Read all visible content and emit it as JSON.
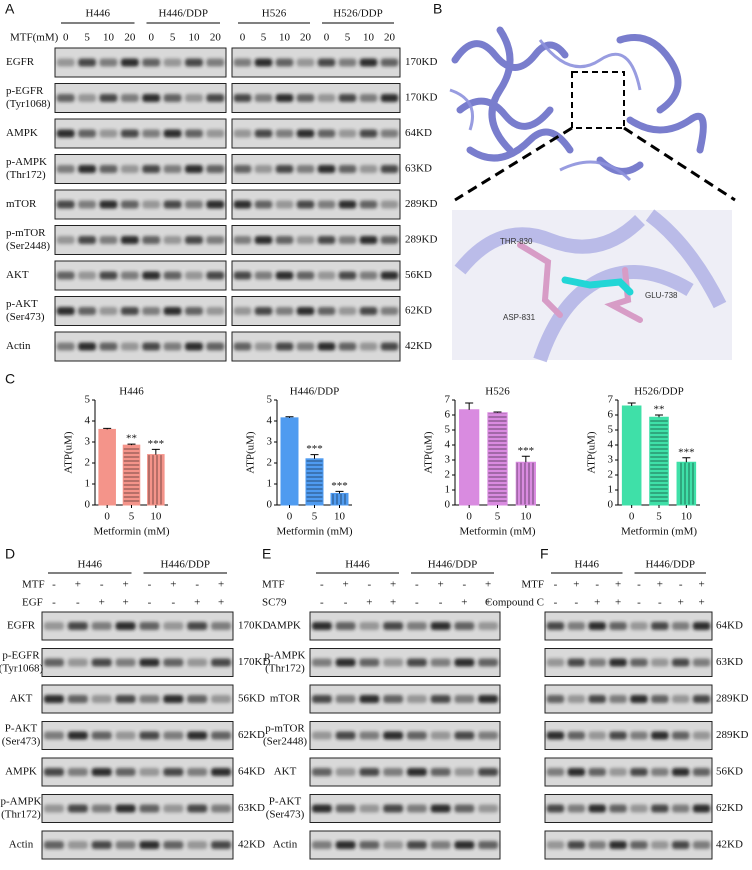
{
  "panel_a": {
    "label": "A",
    "dose_title": "MTF(mM)",
    "blots": [
      {
        "groups": [
          "H446",
          "H446/DDP"
        ],
        "doses": [
          "0",
          "5",
          "10",
          "20",
          "0",
          "5",
          "10",
          "20"
        ]
      },
      {
        "groups": [
          "H526",
          "H526/DDP"
        ],
        "doses": [
          "0",
          "5",
          "10",
          "20",
          "0",
          "5",
          "10",
          "20"
        ]
      }
    ],
    "rows": [
      {
        "label": [
          "EGFR"
        ],
        "size": "170KD"
      },
      {
        "label": [
          "p-EGFR",
          "(Tyr1068)"
        ],
        "size": "170KD"
      },
      {
        "label": [
          "AMPK"
        ],
        "size": "64KD"
      },
      {
        "label": [
          "p-AMPK",
          "(Thr172)"
        ],
        "size": "63KD"
      },
      {
        "label": [
          "mTOR"
        ],
        "size": "289KD"
      },
      {
        "label": [
          "p-mTOR",
          "(Ser2448)"
        ],
        "size": "289KD"
      },
      {
        "label": [
          "AKT"
        ],
        "size": "56KD"
      },
      {
        "label": [
          "p-AKT",
          "(Ser473)"
        ],
        "size": "62KD"
      },
      {
        "label": [
          "Actin"
        ],
        "size": "42KD"
      }
    ]
  },
  "panel_b": {
    "label": "B",
    "residues": [
      "THR-830",
      "ASP-831",
      "GLU-738"
    ]
  },
  "panel_c": {
    "label": "C"
  },
  "chart_data": [
    {
      "type": "bar",
      "title": "H446",
      "categories": [
        "0",
        "5",
        "10"
      ],
      "values": [
        3.6,
        2.85,
        2.4
      ],
      "errors": [
        0.05,
        0.05,
        0.25
      ],
      "significance": [
        null,
        "**",
        "***"
      ],
      "color": "#f4948a",
      "ylim": [
        0,
        5
      ],
      "yticks": [
        0,
        1,
        2,
        3,
        4,
        5
      ],
      "ylabel": "ATP(uM)",
      "xlabel": "Metformin (mM)"
    },
    {
      "type": "bar",
      "title": "H446/DDP",
      "categories": [
        "0",
        "5",
        "10"
      ],
      "values": [
        4.15,
        2.2,
        0.55
      ],
      "errors": [
        0.05,
        0.2,
        0.1
      ],
      "significance": [
        null,
        "***",
        "***"
      ],
      "color": "#4f9bf0",
      "ylim": [
        0,
        5
      ],
      "yticks": [
        0,
        1,
        2,
        3,
        4,
        5
      ],
      "ylabel": "ATP(uM)",
      "xlabel": "Metformin (mM)"
    },
    {
      "type": "bar",
      "title": "H526",
      "categories": [
        "0",
        "5",
        "10"
      ],
      "values": [
        6.35,
        6.15,
        2.85
      ],
      "errors": [
        0.45,
        0.05,
        0.4
      ],
      "significance": [
        null,
        null,
        "***"
      ],
      "color": "#d98be0",
      "ylim": [
        0,
        7
      ],
      "yticks": [
        0,
        1,
        2,
        3,
        4,
        5,
        6,
        7
      ],
      "ylabel": "ATP(uM)",
      "xlabel": "Metformin (mM)"
    },
    {
      "type": "bar",
      "title": "H526/DDP",
      "categories": [
        "0",
        "5",
        "10"
      ],
      "values": [
        6.6,
        5.85,
        2.85
      ],
      "errors": [
        0.2,
        0.15,
        0.3
      ],
      "significance": [
        null,
        "**",
        "***"
      ],
      "color": "#3fe0a8",
      "ylim": [
        0,
        7
      ],
      "yticks": [
        0,
        1,
        2,
        3,
        4,
        5,
        6,
        7
      ],
      "ylabel": "ATP(uM)",
      "xlabel": "Metformin (mM)"
    }
  ],
  "panels_def": [
    {
      "label": "D",
      "groups": [
        "H446",
        "H446/DDP"
      ],
      "treatments": [
        {
          "name": "MTF",
          "signs": [
            "-",
            "+",
            "-",
            "+",
            "-",
            "+",
            "-",
            "+"
          ]
        },
        {
          "name": "EGF",
          "signs": [
            "-",
            "-",
            "+",
            "+",
            "-",
            "-",
            "+",
            "+"
          ]
        }
      ],
      "rows": [
        {
          "label": [
            "EGFR"
          ],
          "size": "170KD"
        },
        {
          "label": [
            "p-EGFR",
            "(Tyr1068)"
          ],
          "size": "170KD"
        },
        {
          "label": [
            "AKT"
          ],
          "size": "56KD"
        },
        {
          "label": [
            "P-AKT",
            "(Ser473)"
          ],
          "size": "62KD"
        },
        {
          "label": [
            "AMPK"
          ],
          "size": "64KD"
        },
        {
          "label": [
            "p-AMPK",
            "(Thr172)"
          ],
          "size": "63KD"
        },
        {
          "label": [
            "Actin"
          ],
          "size": "42KD"
        }
      ]
    },
    {
      "label": "E",
      "groups": [
        "H446",
        "H446/DDP"
      ],
      "treatments": [
        {
          "name": "MTF",
          "signs": [
            "-",
            "+",
            "-",
            "+",
            "-",
            "+",
            "-",
            "+"
          ]
        },
        {
          "name": "SC79",
          "signs": [
            "-",
            "-",
            "+",
            "+",
            "-",
            "-",
            "+",
            "+"
          ]
        }
      ],
      "rows": [
        {
          "label": [
            "AMPK"
          ]
        },
        {
          "label": [
            "p-AMPK",
            "(Thr172)"
          ]
        },
        {
          "label": [
            "mTOR"
          ]
        },
        {
          "label": [
            "p-mTOR",
            "(Ser2448)"
          ]
        },
        {
          "label": [
            "AKT"
          ]
        },
        {
          "label": [
            "P-AKT",
            "(Ser473)"
          ]
        },
        {
          "label": [
            "Actin"
          ]
        }
      ]
    },
    {
      "label": "F",
      "groups": [
        "H446",
        "H446/DDP"
      ],
      "treatments": [
        {
          "name": "MTF",
          "signs": [
            "-",
            "+",
            "-",
            "+",
            "-",
            "+",
            "-",
            "+"
          ]
        },
        {
          "name": "Compound C",
          "signs": [
            "-",
            "-",
            "+",
            "+",
            "-",
            "-",
            "+",
            "+"
          ]
        }
      ],
      "rows": [
        {
          "size": "64KD"
        },
        {
          "size": "63KD"
        },
        {
          "size": "289KD"
        },
        {
          "size": "289KD"
        },
        {
          "size": "56KD"
        },
        {
          "size": "62KD"
        },
        {
          "size": "42KD"
        }
      ]
    }
  ]
}
